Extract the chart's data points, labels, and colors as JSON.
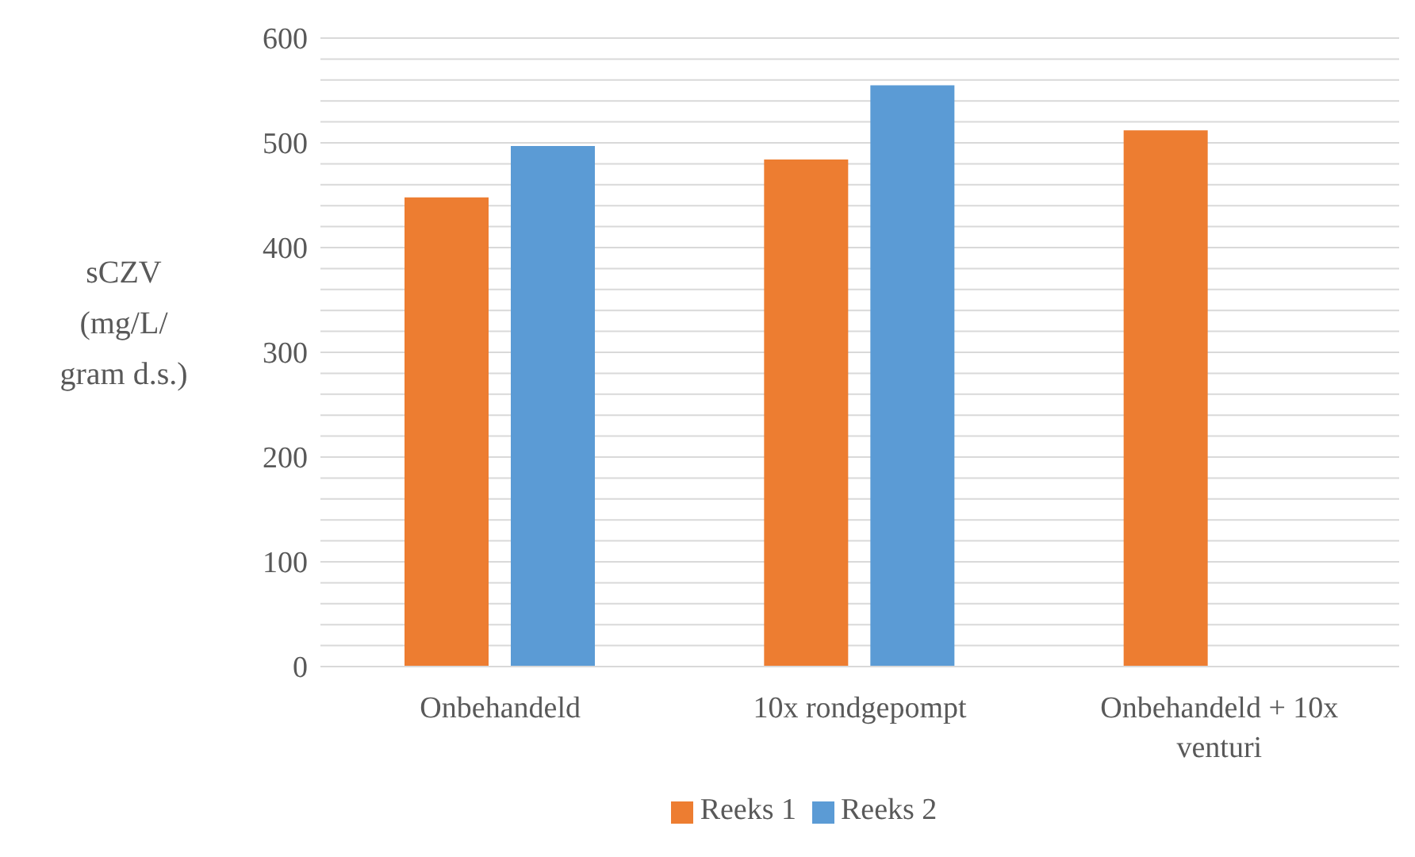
{
  "chart_data": {
    "type": "bar",
    "ylabel": "sCZV (mg/L/ gram d.s.)",
    "categories": [
      "Onbehandeld",
      "10x rondgepompt",
      "Onbehandeld + 10x venturi"
    ],
    "series": [
      {
        "name": "Reeks 1",
        "color": "#ed7d31",
        "values": [
          448,
          484,
          512
        ]
      },
      {
        "name": "Reeks 2",
        "color": "#5b9bd5",
        "values": [
          497,
          555,
          null
        ]
      }
    ],
    "ylim": [
      0,
      600
    ],
    "yticks": [
      0,
      {
        "value": 20,
        "label": null
      },
      {
        "value": 40,
        "label": null
      },
      {
        "value": 60,
        "label": null
      },
      {
        "value": 80,
        "label": null
      },
      100,
      {
        "value": 120,
        "label": null
      },
      {
        "value": 140,
        "label": null
      },
      {
        "value": 160,
        "label": null
      },
      {
        "value": 180,
        "label": null
      },
      200,
      {
        "value": 220,
        "label": null
      },
      {
        "value": 240,
        "label": null
      },
      {
        "value": 260,
        "label": null
      },
      {
        "value": 280,
        "label": null
      },
      300,
      {
        "value": 320,
        "label": null
      },
      {
        "value": 340,
        "label": null
      },
      {
        "value": 360,
        "label": null
      },
      {
        "value": 380,
        "label": null
      },
      400,
      {
        "value": 420,
        "label": null
      },
      {
        "value": 440,
        "label": null
      },
      {
        "value": 460,
        "label": null
      },
      {
        "value": 480,
        "label": null
      },
      500,
      {
        "value": 520,
        "label": null
      },
      {
        "value": 540,
        "label": null
      },
      {
        "value": 560,
        "label": null
      },
      {
        "value": 580,
        "label": null
      },
      600
    ],
    "grid": "y",
    "legend": "bottom"
  }
}
